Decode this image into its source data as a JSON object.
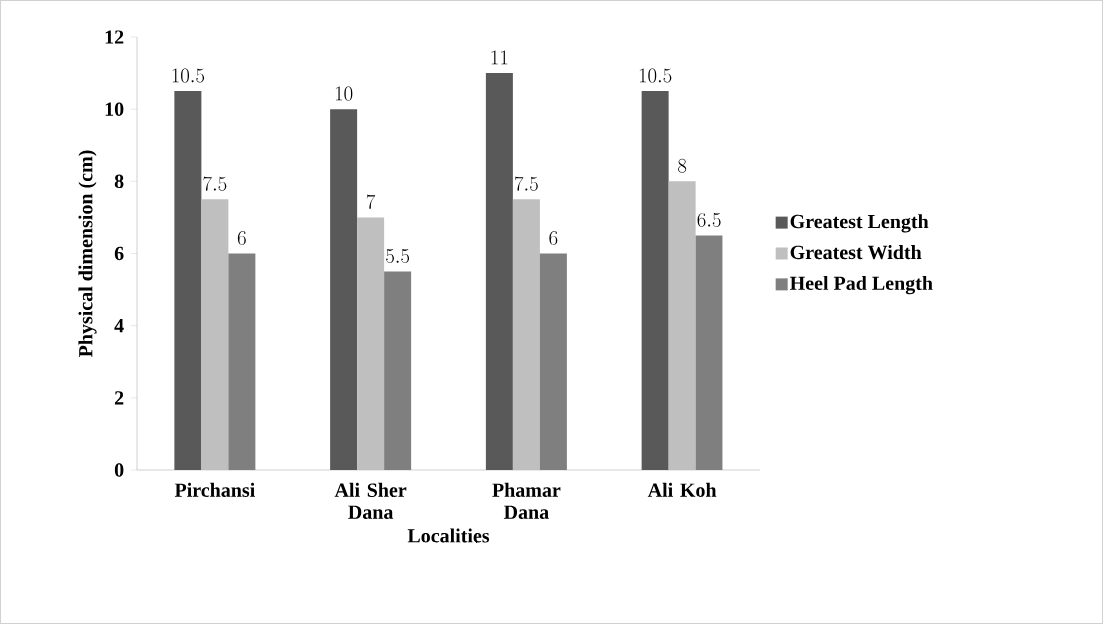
{
  "chart_data": {
    "type": "bar",
    "xlabel": "Localities",
    "ylabel": "Physical dimension (cm)",
    "categories": [
      "Pirchansi",
      "Ali Sher Dana",
      "Phamar Dana",
      "Ali Koh"
    ],
    "series": [
      {
        "name": "Greatest Length",
        "color": "#595959",
        "values": [
          10.5,
          10,
          11,
          10.5
        ]
      },
      {
        "name": "Greatest Width",
        "color": "#bfbfbf",
        "values": [
          7.5,
          7,
          7.5,
          8
        ]
      },
      {
        "name": "Heel Pad Length",
        "color": "#7f7f7f",
        "values": [
          6,
          5.5,
          6,
          6.5
        ]
      }
    ],
    "ylim": [
      0,
      12
    ],
    "yticks": [
      0,
      2,
      4,
      6,
      8,
      10,
      12
    ],
    "data_labels": true,
    "legend": "right",
    "grid": false
  }
}
